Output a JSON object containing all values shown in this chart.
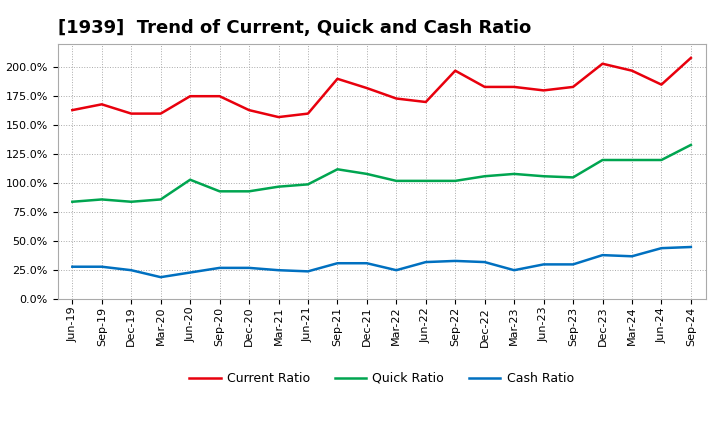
{
  "title": "[1939]  Trend of Current, Quick and Cash Ratio",
  "x_labels": [
    "Jun-19",
    "Sep-19",
    "Dec-19",
    "Mar-20",
    "Jun-20",
    "Sep-20",
    "Dec-20",
    "Mar-21",
    "Jun-21",
    "Sep-21",
    "Dec-21",
    "Mar-22",
    "Jun-22",
    "Sep-22",
    "Dec-22",
    "Mar-23",
    "Jun-23",
    "Sep-23",
    "Dec-23",
    "Mar-24",
    "Jun-24",
    "Sep-24"
  ],
  "current_ratio": [
    1.63,
    1.68,
    1.6,
    1.6,
    1.75,
    1.75,
    1.63,
    1.57,
    1.6,
    1.9,
    1.82,
    1.73,
    1.7,
    1.97,
    1.83,
    1.83,
    1.8,
    1.83,
    2.03,
    1.97,
    1.85,
    2.08
  ],
  "quick_ratio": [
    0.84,
    0.86,
    0.84,
    0.86,
    1.03,
    0.93,
    0.93,
    0.97,
    0.99,
    1.12,
    1.08,
    1.02,
    1.02,
    1.02,
    1.06,
    1.08,
    1.06,
    1.05,
    1.2,
    1.2,
    1.2,
    1.33
  ],
  "cash_ratio": [
    0.28,
    0.28,
    0.25,
    0.19,
    0.23,
    0.27,
    0.27,
    0.25,
    0.24,
    0.31,
    0.31,
    0.25,
    0.32,
    0.33,
    0.32,
    0.25,
    0.3,
    0.3,
    0.38,
    0.37,
    0.44,
    0.45
  ],
  "current_color": "#e8000d",
  "quick_color": "#00a550",
  "cash_color": "#0070c0",
  "background_color": "#ffffff",
  "plot_background": "#ffffff",
  "grid_color": "#aaaaaa",
  "ylim": [
    0.0,
    2.2
  ],
  "yticks": [
    0.0,
    0.25,
    0.5,
    0.75,
    1.0,
    1.25,
    1.5,
    1.75,
    2.0
  ],
  "legend_labels": [
    "Current Ratio",
    "Quick Ratio",
    "Cash Ratio"
  ],
  "title_fontsize": 13,
  "axis_fontsize": 8,
  "legend_fontsize": 9,
  "line_width": 1.8
}
